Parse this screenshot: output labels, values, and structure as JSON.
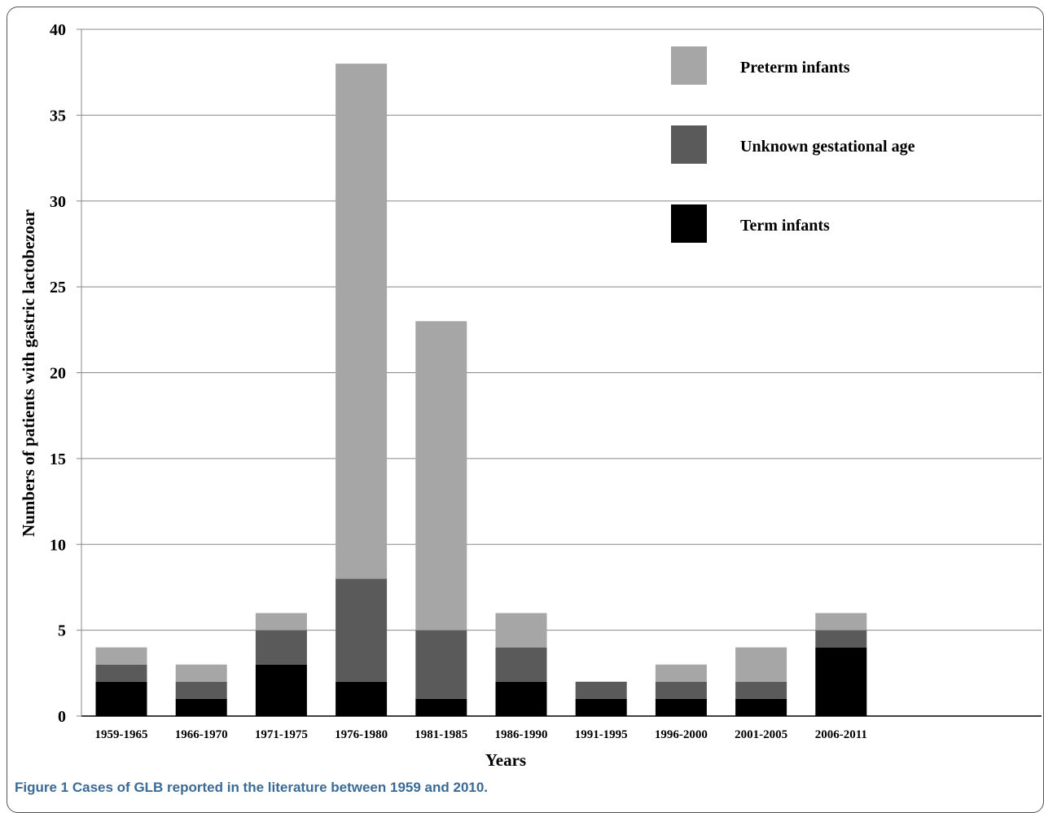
{
  "caption": {
    "label": "Figure 1",
    "text": "Cases of GLB reported in the literature between 1959 and 2010."
  },
  "chart_data": {
    "type": "bar",
    "stacked": true,
    "categories": [
      "1959-1965",
      "1966-1970",
      "1971-1975",
      "1976-1980",
      "1981-1985",
      "1986-1990",
      "1991-1995",
      "1996-2000",
      "2001-2005",
      "2006-2011"
    ],
    "series": [
      {
        "name": "Term infants",
        "color": "#000000",
        "values": [
          2,
          1,
          3,
          2,
          1,
          2,
          1,
          1,
          1,
          4
        ]
      },
      {
        "name": "Unknown gestational age",
        "color": "#5a5a5a",
        "values": [
          1,
          1,
          2,
          6,
          4,
          2,
          1,
          1,
          1,
          1
        ]
      },
      {
        "name": "Preterm infants",
        "color": "#a6a6a6",
        "values": [
          1,
          1,
          1,
          30,
          18,
          2,
          0,
          1,
          2,
          1
        ]
      }
    ],
    "legend_order": [
      "Preterm infants",
      "Unknown gestational age",
      "Term infants"
    ],
    "legend_position": "top-right",
    "xlabel": "Years",
    "ylabel": "Numbers of patients with gastric lactobezoar",
    "ylim": [
      0,
      40
    ],
    "yticks": [
      0,
      5,
      10,
      15,
      20,
      25,
      30,
      35,
      40
    ],
    "grid": true
  }
}
